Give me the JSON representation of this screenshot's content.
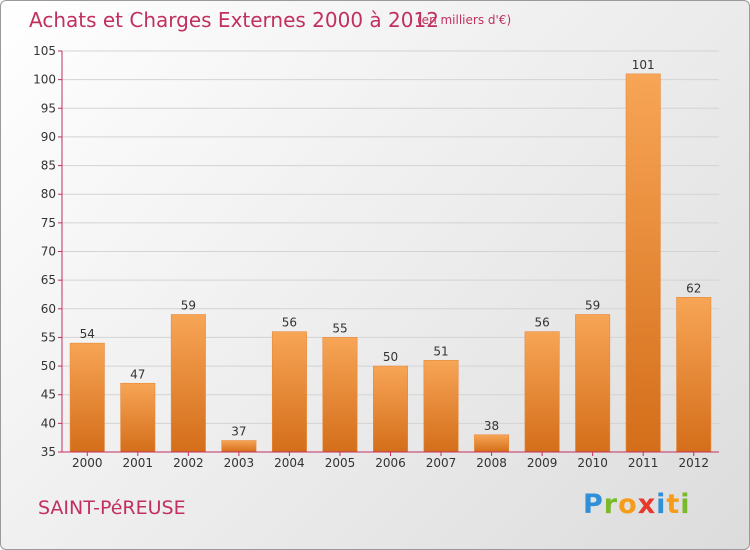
{
  "header": {
    "title": "Achats et Charges Externes 2000 à 2012",
    "subtitle": "(en milliers d'€)"
  },
  "footer": {
    "commune": "SAINT-PéREUSE",
    "logo_letters": [
      "P",
      "r",
      "o",
      "x",
      "i",
      "t",
      "i"
    ],
    "logo_colors": [
      "#2f8fd8",
      "#7ab929",
      "#f59c1a",
      "#e8372b",
      "#2f8fd8",
      "#f59c1a",
      "#7ab929"
    ]
  },
  "chart_data": {
    "type": "bar",
    "title": "Achats et Charges Externes 2000 à 2012",
    "subtitle": "(en milliers d'€)",
    "categories": [
      "2000",
      "2001",
      "2002",
      "2003",
      "2004",
      "2005",
      "2006",
      "2007",
      "2008",
      "2009",
      "2010",
      "2011",
      "2012"
    ],
    "values": [
      54,
      47,
      59,
      37,
      56,
      55,
      50,
      51,
      38,
      56,
      59,
      101,
      62
    ],
    "ylim": [
      35,
      105
    ],
    "yticks": [
      35,
      40,
      45,
      50,
      55,
      60,
      65,
      70,
      75,
      80,
      85,
      90,
      95,
      100,
      105
    ],
    "grid": true,
    "bar_color_top": "#f7a556",
    "bar_color_bottom": "#d46e1a",
    "axis_color": "#c1305e"
  }
}
